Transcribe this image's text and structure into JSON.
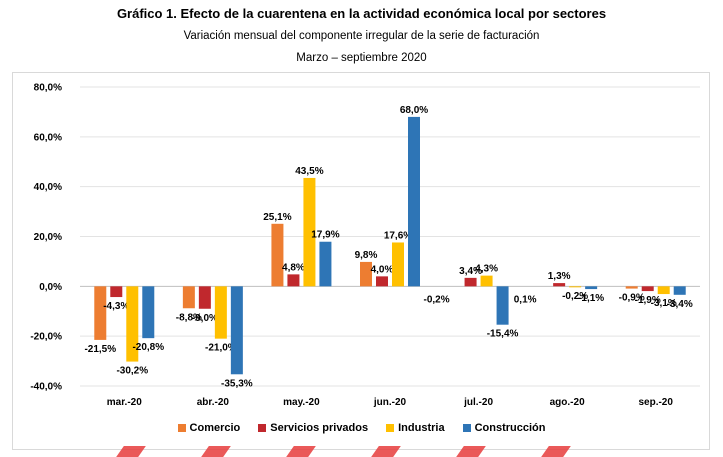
{
  "header": {
    "title": "Gráfico 1. Efecto de la cuarentena en la actividad económica local por sectores",
    "subtitle": "Variación mensual del componente irregular de la serie de facturación",
    "period": "Marzo – septiembre 2020"
  },
  "colors": {
    "Comercio": "#ED7D31",
    "Servicios privados": "#C0282D",
    "Industria": "#FFC000",
    "Construcción": "#2E75B6",
    "accent_stripes": "#E63C3C"
  },
  "chart_data": {
    "type": "bar",
    "categories": [
      "mar.-20",
      "abr.-20",
      "may.-20",
      "jun.-20",
      "jul.-20",
      "ago.-20",
      "sep.-20"
    ],
    "series": [
      {
        "name": "Comercio",
        "values": [
          -21.5,
          -8.8,
          25.1,
          9.8,
          0,
          0,
          -0.9
        ],
        "labels": [
          "-21,5%",
          "-8,8%",
          "25,1%",
          "9,8%",
          "",
          "",
          "-0,9%"
        ]
      },
      {
        "name": "Servicios privados",
        "values": [
          -4.3,
          -9.0,
          4.8,
          4.0,
          3.4,
          1.3,
          -1.9
        ],
        "labels": [
          "-4,3%",
          "-9,0%",
          "4,8%",
          "4,0%",
          "3,4%",
          "1,3%",
          "-1,9%"
        ]
      },
      {
        "name": "Industria",
        "values": [
          -30.2,
          -21.0,
          43.5,
          17.6,
          4.3,
          -0.2,
          -3.1
        ],
        "labels": [
          "-30,2%",
          "-21,0%",
          "43,5%",
          "17,6%",
          "4,3%",
          "-0,2%",
          "-3,1%"
        ]
      },
      {
        "name": "Construcción",
        "values": [
          -20.8,
          -35.3,
          17.9,
          68.0,
          -15.4,
          -1.1,
          -3.4
        ],
        "labels": [
          "-20,8%",
          "-35,3%",
          "17,9%",
          "68,0%",
          "-15,4%",
          "-1,1%",
          "-3,4%"
        ]
      }
    ],
    "extra_labels": [
      {
        "category": "jul.-20",
        "text": "-0,2%"
      },
      {
        "category": "ago.-20",
        "text": "0,1%"
      }
    ],
    "ylim": [
      -40,
      80
    ],
    "yticks": [
      "-40,0%",
      "-20,0%",
      "0,0%",
      "20,0%",
      "40,0%",
      "60,0%",
      "80,0%"
    ],
    "ytick_values": [
      -40,
      -20,
      0,
      20,
      40,
      60,
      80
    ],
    "grid": true,
    "legend_position": "bottom"
  }
}
